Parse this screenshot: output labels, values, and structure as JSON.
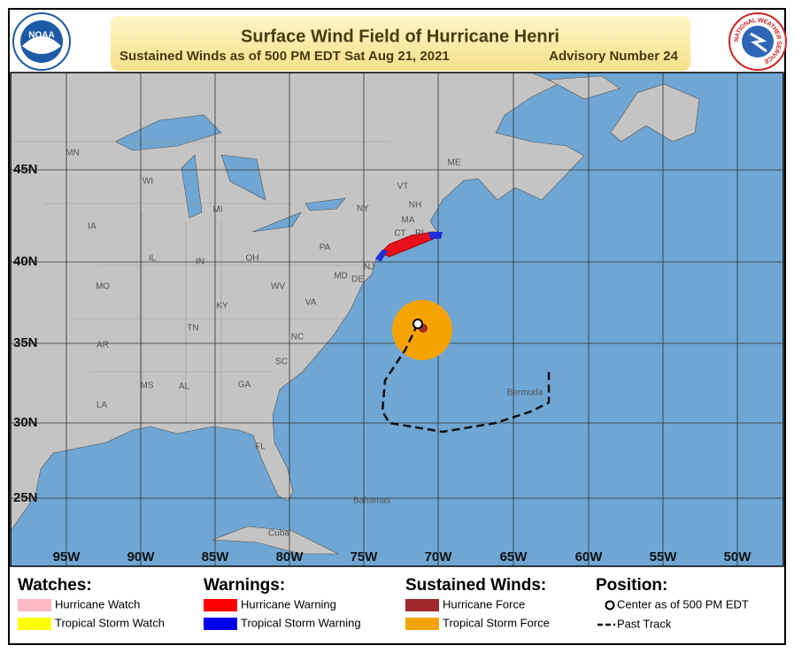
{
  "logos": {
    "left": "NOAA",
    "right": "NATIONAL WEATHER SERVICE"
  },
  "header": {
    "title": "Surface Wind Field of Hurricane Henri",
    "subtitle": "Sustained Winds as of 500 PM EDT Sat Aug 21, 2021",
    "advisory": "Advisory Number 24"
  },
  "map": {
    "longitudes": [
      "95W",
      "90W",
      "85W",
      "80W",
      "75W",
      "70W",
      "65W",
      "60W",
      "55W",
      "50W"
    ],
    "latitudes": [
      "45N",
      "40N",
      "35N",
      "30N",
      "25N"
    ],
    "states": [
      "MN",
      "WI",
      "MI",
      "IA",
      "IL",
      "IN",
      "OH",
      "PA",
      "NY",
      "VT",
      "NH",
      "ME",
      "MA",
      "CT",
      "RI",
      "NJ",
      "DE",
      "MD",
      "WV",
      "VA",
      "KY",
      "MO",
      "TN",
      "NC",
      "SC",
      "AR",
      "MS",
      "AL",
      "GA",
      "LA",
      "FL"
    ],
    "places": [
      "Bermuda",
      "Bahamas",
      "Cuba"
    ]
  },
  "legend": {
    "watches": {
      "title": "Watches:",
      "items": [
        "Hurricane Watch",
        "Tropical Storm Watch"
      ]
    },
    "warnings": {
      "title": "Warnings:",
      "items": [
        "Hurricane Warning",
        "Tropical Storm Warning"
      ]
    },
    "winds": {
      "title": "Sustained Winds:",
      "items": [
        "Hurricane Force",
        "Tropical Storm Force"
      ]
    },
    "position": {
      "title": "Position:",
      "items": [
        "Center as of 500 PM EDT",
        "Past Track"
      ]
    }
  }
}
